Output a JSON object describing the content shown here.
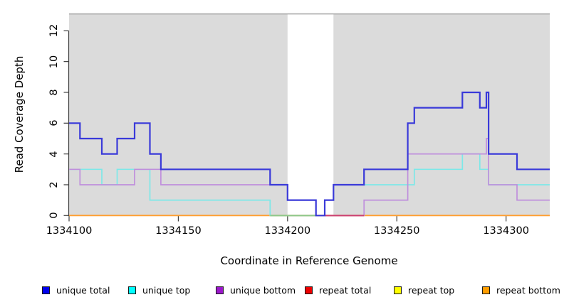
{
  "chart_data": {
    "type": "line",
    "subtype": "step-coverage",
    "title": "",
    "xlabel": "Coordinate in Reference Genome",
    "ylabel": "Read Coverage Depth",
    "xlim": [
      1334100,
      1334320
    ],
    "ylim": [
      0,
      13.1
    ],
    "x_ticks": [
      1334100,
      1334150,
      1334200,
      1334250,
      1334300
    ],
    "y_ticks": [
      0,
      2,
      4,
      6,
      8,
      10,
      12
    ],
    "grid": "off",
    "legend_position": "bottom",
    "plot_bg_color": "#dbdbdb",
    "plot_top_border_color": "#aaaaaa",
    "axis_color": "#3f3f3f",
    "highlight_band": {
      "from": 1334200,
      "to": 1334221,
      "color": "#ffffff"
    },
    "series": [
      {
        "name": "unique total",
        "swatch_color": "#0000ee",
        "line_color": "#3a3ad9",
        "line_width": 2.2,
        "steps": [
          [
            1334100,
            6
          ],
          [
            1334105,
            5
          ],
          [
            1334115,
            4
          ],
          [
            1334122,
            5
          ],
          [
            1334130,
            6
          ],
          [
            1334137,
            4
          ],
          [
            1334142,
            3
          ],
          [
            1334192,
            2
          ],
          [
            1334200,
            1
          ],
          [
            1334213,
            0
          ],
          [
            1334217,
            1
          ],
          [
            1334221,
            2
          ],
          [
            1334235,
            3
          ],
          [
            1334255,
            6
          ],
          [
            1334258,
            7
          ],
          [
            1334280,
            8
          ],
          [
            1334288,
            7
          ],
          [
            1334291,
            8
          ],
          [
            1334292,
            4
          ],
          [
            1334305,
            3
          ]
        ]
      },
      {
        "name": "unique top",
        "swatch_color": "#00ffff",
        "line_color": "#7de8e8",
        "line_width": 1.7,
        "steps": [
          [
            1334100,
            3
          ],
          [
            1334115,
            2
          ],
          [
            1334122,
            3
          ],
          [
            1334137,
            1
          ],
          [
            1334192,
            0
          ],
          [
            1334217,
            1
          ],
          [
            1334221,
            2
          ],
          [
            1334258,
            3
          ],
          [
            1334280,
            4
          ],
          [
            1334288,
            3
          ],
          [
            1334292,
            2
          ]
        ]
      },
      {
        "name": "unique bottom",
        "swatch_color": "#9c17cc",
        "line_color": "#bf8fdc",
        "line_width": 1.7,
        "steps": [
          [
            1334100,
            3
          ],
          [
            1334105,
            2
          ],
          [
            1334130,
            3
          ],
          [
            1334142,
            2
          ],
          [
            1334200,
            1
          ],
          [
            1334213,
            0
          ],
          [
            1334235,
            1
          ],
          [
            1334255,
            4
          ],
          [
            1334291,
            5
          ],
          [
            1334292,
            2
          ],
          [
            1334305,
            1
          ]
        ]
      },
      {
        "name": "repeat total",
        "swatch_color": "#ee0000",
        "line_color": "#ee2222",
        "line_width": 1.5,
        "steps": [
          [
            1334100,
            0
          ]
        ]
      },
      {
        "name": "repeat top",
        "swatch_color": "#ffff00",
        "line_color": "#f2e433",
        "line_width": 1.5,
        "steps": [
          [
            1334100,
            0
          ]
        ]
      },
      {
        "name": "repeat bottom",
        "swatch_color": "#ff9d00",
        "line_color": "#ffa033",
        "line_width": 2,
        "steps": [
          [
            1334100,
            0
          ]
        ]
      }
    ],
    "zero_line_overlap_segments": [
      {
        "from": 1334192,
        "to": 1334213,
        "color": "#8fca8f",
        "note": "unique top + repeat top overlap at 0"
      },
      {
        "from": 1334217,
        "to": 1334235,
        "color": "#cc4477",
        "note": "unique bottom + repeat total overlap at 0"
      }
    ]
  }
}
